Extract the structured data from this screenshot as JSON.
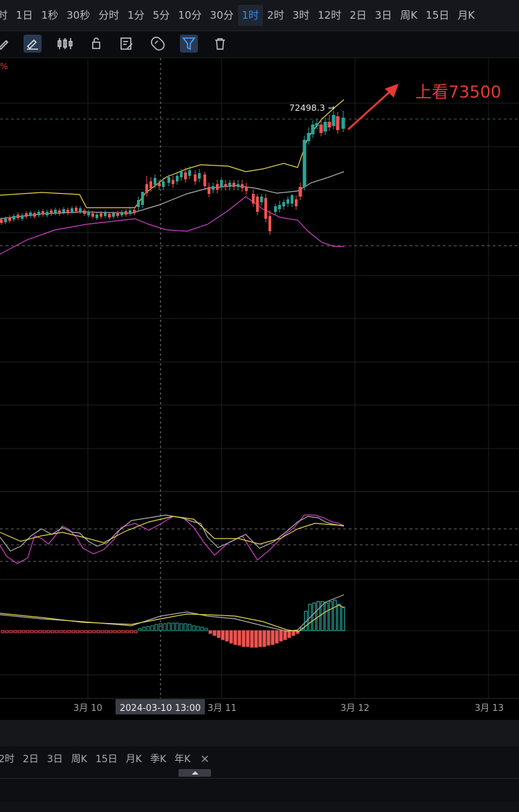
{
  "timeframes": [
    "时",
    "1日",
    "1秒",
    "30秒",
    "分时",
    "1分",
    "5分",
    "10分",
    "30分",
    "1时",
    "2时",
    "3时",
    "12时",
    "2日",
    "3日",
    "周K",
    "15日",
    "月K"
  ],
  "active_timeframe": "1时",
  "toolbar_icons": [
    "pencil-icon",
    "ruler-pencil-icon",
    "candlestick-icon",
    "lock-icon",
    "edit-note-icon",
    "magnet-icon",
    "filter-icon",
    "trash-icon"
  ],
  "toolbar_active": [
    "ruler-pencil-icon",
    "filter-icon"
  ],
  "percent_label": "%",
  "annotation": {
    "text": "上看73500",
    "color": "#e53935"
  },
  "price_label": "72498.3 →",
  "crosshair_label": "2024-03-10 13:00",
  "x_labels": [
    "3月 10",
    "3月 11",
    "3月 12",
    "3月 13"
  ],
  "bottom_timeframes": [
    "2时",
    "2日",
    "3日",
    "周K",
    "15日",
    "月K",
    "季K",
    "年K"
  ],
  "close_symbol": "✕",
  "colors": {
    "up": "#26a69a",
    "down": "#ef5350",
    "upper_band": "#e8d44d",
    "middle_band": "#b0b0b0",
    "lower_band": "#d040c8",
    "accent": "#2d8cf0"
  },
  "chart_data": {
    "type": "candlestick",
    "interval": "1时",
    "x_axis": [
      "3月 10",
      "3月 11",
      "3月 12",
      "3月 13"
    ],
    "last_marked_price": 72498.3,
    "target_annotation": 73500,
    "indicators": [
      "Bollinger Bands",
      "KDJ",
      "MACD"
    ]
  }
}
